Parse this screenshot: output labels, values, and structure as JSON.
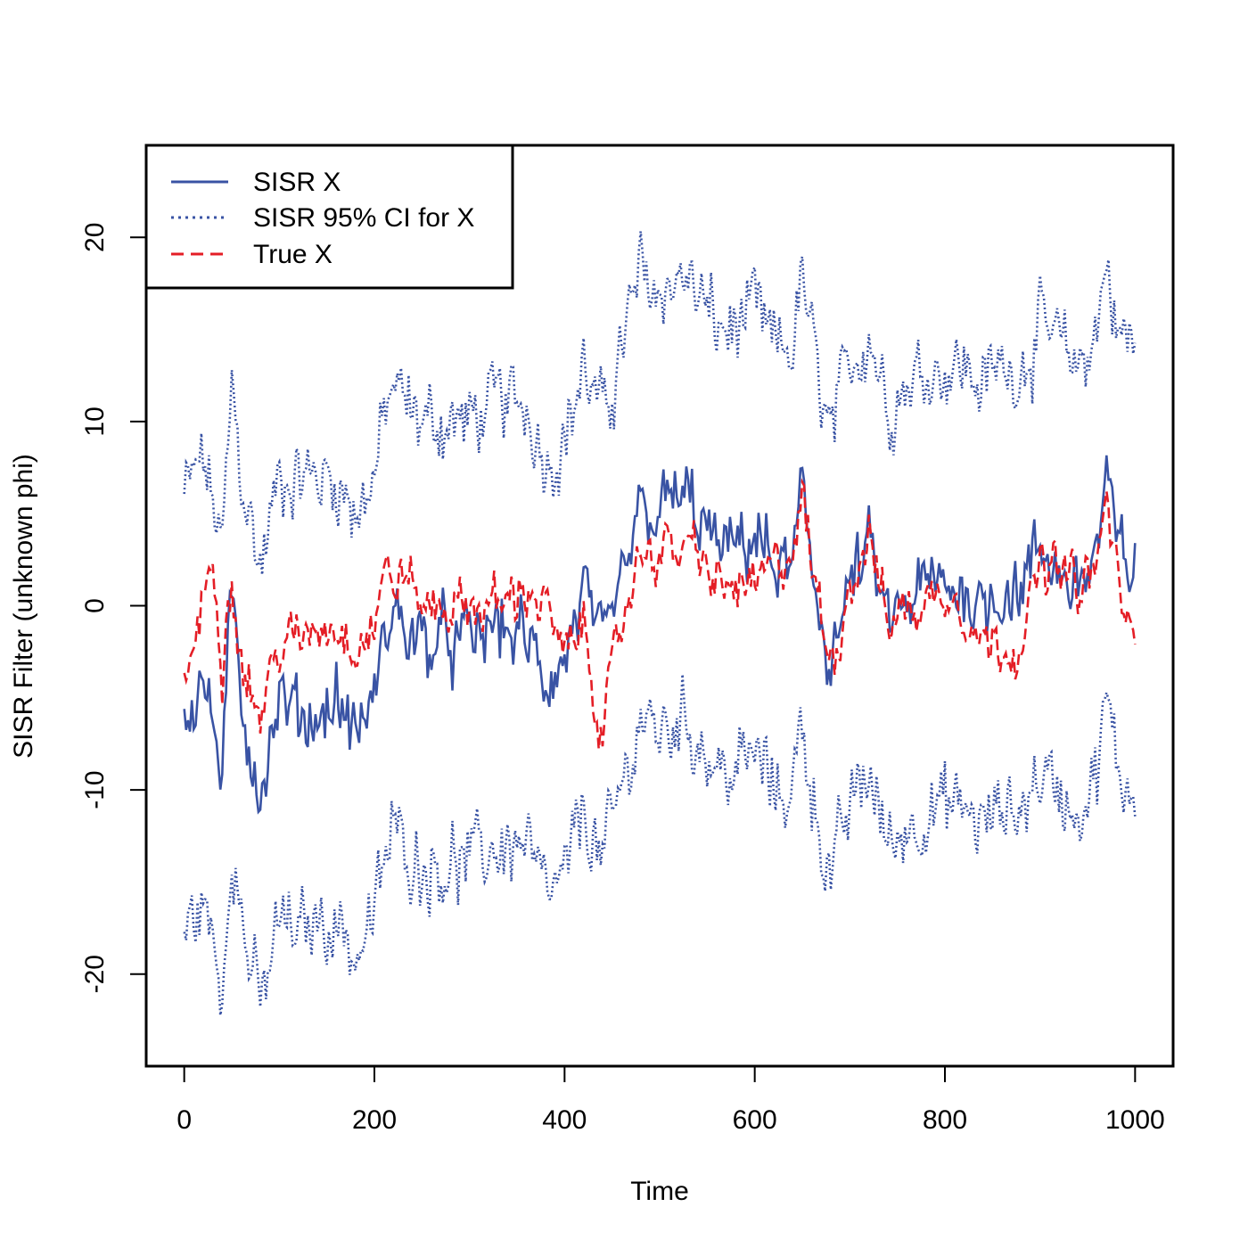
{
  "chart_data": {
    "type": "line",
    "title": "",
    "xlabel": "Time",
    "ylabel": "SISR Filter (unknown phi)",
    "xlim": [
      -40,
      1040
    ],
    "ylim": [
      -25,
      25
    ],
    "x_ticks": [
      0,
      200,
      400,
      600,
      800,
      1000
    ],
    "y_ticks": [
      -20,
      -10,
      0,
      10,
      20
    ],
    "legend_position": "top-left",
    "colors": {
      "sisr": "#3953a4",
      "true": "#e41e26",
      "axis": "#000000"
    },
    "series": [
      {
        "name": "SISR X",
        "style": "solid",
        "color": "#3953a4",
        "x": [
          0,
          20,
          40,
          50,
          60,
          80,
          100,
          120,
          140,
          160,
          180,
          200,
          210,
          220,
          230,
          250,
          270,
          300,
          330,
          360,
          380,
          400,
          420,
          440,
          460,
          480,
          500,
          520,
          540,
          560,
          580,
          600,
          620,
          640,
          650,
          660,
          680,
          700,
          720,
          740,
          760,
          780,
          800,
          820,
          840,
          860,
          880,
          900,
          920,
          940,
          960,
          970,
          980,
          1000
        ],
        "values": [
          -6,
          -4,
          -9,
          0,
          -5,
          -10,
          -5,
          -6,
          -6,
          -5,
          -7,
          -5,
          -2,
          0,
          -1,
          -2,
          -2,
          -2,
          -1,
          -2,
          -4,
          -3,
          1,
          -3,
          1,
          5,
          5,
          6,
          5,
          3,
          3,
          4,
          2,
          2,
          6,
          2,
          -3,
          1,
          3,
          -1,
          0,
          1,
          1,
          1,
          0,
          1,
          1,
          3,
          2,
          1,
          3,
          7,
          3,
          2
        ]
      },
      {
        "name": "SISR 95% CI for X",
        "style": "dotted",
        "color": "#3953a4",
        "x": [
          0,
          20,
          40,
          50,
          60,
          80,
          100,
          120,
          140,
          160,
          180,
          200,
          210,
          220,
          230,
          250,
          270,
          300,
          330,
          360,
          380,
          400,
          420,
          440,
          460,
          480,
          500,
          520,
          540,
          560,
          580,
          600,
          620,
          640,
          650,
          660,
          680,
          700,
          720,
          740,
          760,
          780,
          800,
          820,
          840,
          860,
          880,
          900,
          920,
          940,
          960,
          970,
          980,
          1000
        ],
        "lower": [
          -18,
          -16,
          -21,
          -12,
          -17,
          -22,
          -17,
          -18,
          -17,
          -17,
          -19,
          -17,
          -14,
          -12,
          -13,
          -14,
          -14,
          -14,
          -13,
          -13,
          -16,
          -15,
          -11,
          -14,
          -10,
          -6,
          -7,
          -6,
          -7,
          -9,
          -9,
          -8,
          -10,
          -10,
          -6,
          -10,
          -15,
          -11,
          -9,
          -13,
          -12,
          -11,
          -11,
          -11,
          -12,
          -11,
          -11,
          -9,
          -10,
          -11,
          -9,
          -5,
          -9,
          -10
        ],
        "upper": [
          6,
          8,
          3,
          12,
          7,
          2,
          7,
          7,
          7,
          7,
          5,
          7,
          10,
          12,
          11,
          10,
          10,
          10,
          11,
          11,
          8,
          9,
          13,
          10,
          14,
          18,
          17,
          18,
          17,
          15,
          15,
          16,
          14,
          14,
          18,
          14,
          9,
          13,
          15,
          11,
          12,
          13,
          13,
          13,
          12,
          13,
          13,
          15,
          14,
          13,
          15,
          19,
          15,
          14
        ]
      },
      {
        "name": "True X",
        "style": "dashed",
        "color": "#e41e26",
        "x": [
          0,
          20,
          30,
          40,
          50,
          60,
          80,
          100,
          120,
          140,
          160,
          180,
          200,
          210,
          220,
          230,
          250,
          270,
          300,
          330,
          360,
          380,
          400,
          420,
          440,
          460,
          480,
          500,
          520,
          540,
          560,
          580,
          600,
          620,
          640,
          650,
          660,
          680,
          700,
          720,
          740,
          760,
          780,
          800,
          820,
          840,
          860,
          880,
          900,
          920,
          940,
          960,
          970,
          980,
          1000
        ],
        "values": [
          -4,
          0,
          3,
          -3,
          2,
          -3,
          -6,
          -2,
          -2,
          -1,
          -1,
          -2,
          -1,
          2,
          1,
          2,
          0,
          0,
          0,
          0,
          1,
          0,
          -3,
          -1,
          -7,
          -1,
          3,
          3,
          3,
          3,
          1,
          1,
          1,
          2,
          3,
          6,
          2,
          -3,
          1,
          4,
          -1,
          0,
          0,
          1,
          0,
          -2,
          -2,
          -2,
          2,
          2,
          1,
          2,
          6,
          2,
          -3
        ]
      }
    ]
  }
}
